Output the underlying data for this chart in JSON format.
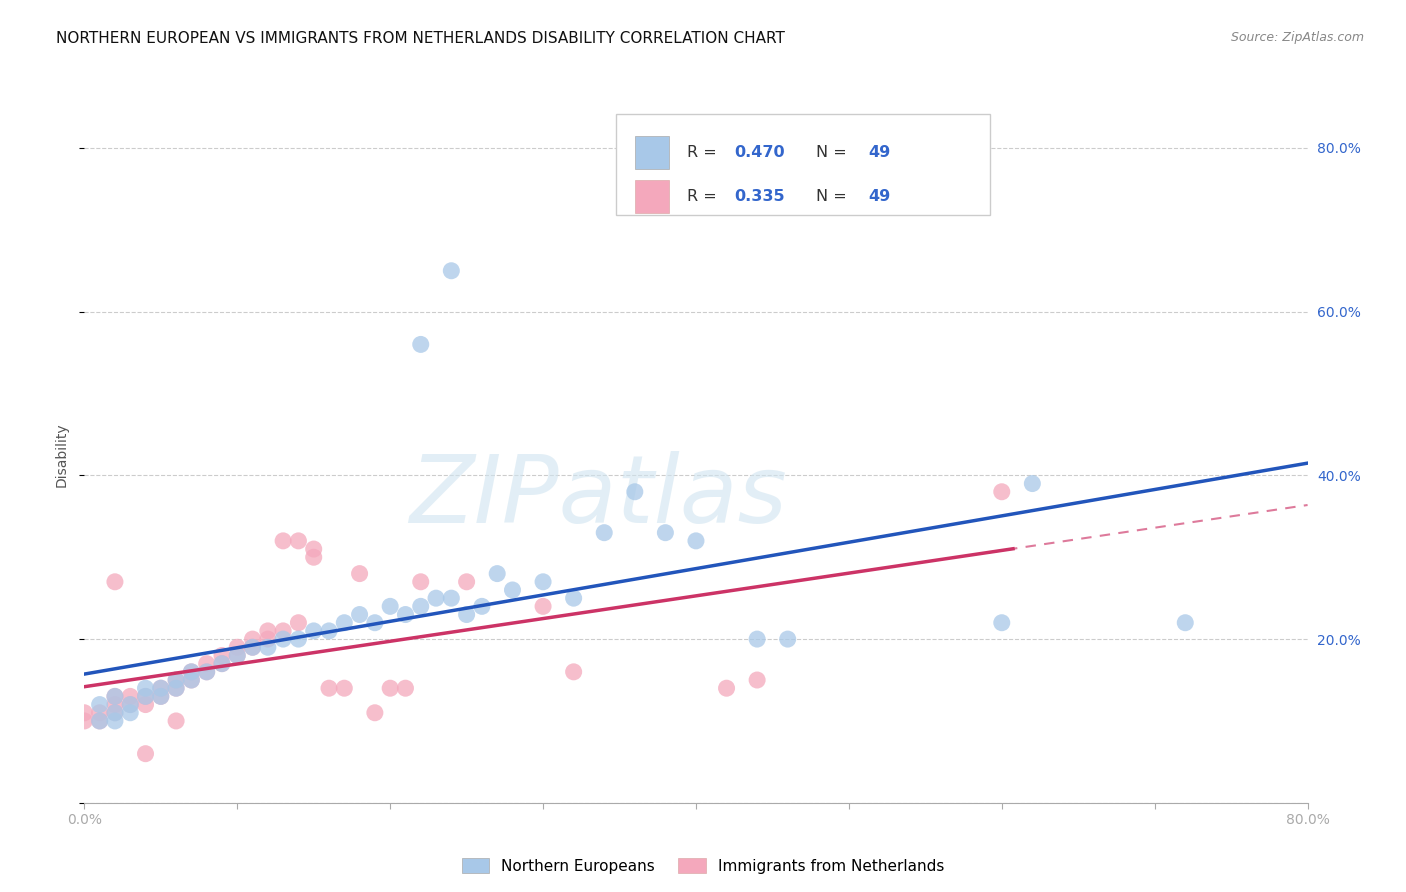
{
  "title": "NORTHERN EUROPEAN VS IMMIGRANTS FROM NETHERLANDS DISABILITY CORRELATION CHART",
  "source": "Source: ZipAtlas.com",
  "ylabel": "Disability",
  "x_min": 0.0,
  "x_max": 0.8,
  "y_min": 0.0,
  "y_max": 0.85,
  "blue_R": 0.47,
  "blue_N": 49,
  "pink_R": 0.335,
  "pink_N": 49,
  "blue_color": "#A8C8E8",
  "pink_color": "#F4A8BC",
  "blue_line_color": "#2255BB",
  "pink_line_color": "#CC3366",
  "watermark_text": "ZIPatlas",
  "legend_label_blue": "Northern Europeans",
  "legend_label_pink": "Immigrants from Netherlands",
  "blue_scatter_x": [
    0.01,
    0.01,
    0.02,
    0.02,
    0.02,
    0.03,
    0.03,
    0.04,
    0.04,
    0.05,
    0.05,
    0.06,
    0.06,
    0.07,
    0.07,
    0.08,
    0.09,
    0.1,
    0.11,
    0.12,
    0.13,
    0.14,
    0.15,
    0.16,
    0.17,
    0.18,
    0.19,
    0.2,
    0.21,
    0.22,
    0.23,
    0.24,
    0.25,
    0.26,
    0.27,
    0.28,
    0.3,
    0.32,
    0.34,
    0.36,
    0.38,
    0.4,
    0.44,
    0.46,
    0.6,
    0.62,
    0.72,
    0.22,
    0.24
  ],
  "blue_scatter_y": [
    0.1,
    0.12,
    0.1,
    0.11,
    0.13,
    0.11,
    0.12,
    0.13,
    0.14,
    0.13,
    0.14,
    0.14,
    0.15,
    0.15,
    0.16,
    0.16,
    0.17,
    0.18,
    0.19,
    0.19,
    0.2,
    0.2,
    0.21,
    0.21,
    0.22,
    0.23,
    0.22,
    0.24,
    0.23,
    0.24,
    0.25,
    0.25,
    0.23,
    0.24,
    0.28,
    0.26,
    0.27,
    0.25,
    0.33,
    0.38,
    0.33,
    0.32,
    0.2,
    0.2,
    0.22,
    0.39,
    0.22,
    0.56,
    0.65
  ],
  "pink_scatter_x": [
    0.0,
    0.0,
    0.01,
    0.01,
    0.02,
    0.02,
    0.02,
    0.03,
    0.03,
    0.04,
    0.04,
    0.05,
    0.05,
    0.06,
    0.06,
    0.06,
    0.07,
    0.07,
    0.08,
    0.08,
    0.09,
    0.09,
    0.1,
    0.1,
    0.11,
    0.11,
    0.12,
    0.12,
    0.13,
    0.13,
    0.14,
    0.14,
    0.15,
    0.15,
    0.16,
    0.17,
    0.18,
    0.19,
    0.2,
    0.21,
    0.22,
    0.25,
    0.3,
    0.32,
    0.42,
    0.44,
    0.6,
    0.02,
    0.04
  ],
  "pink_scatter_y": [
    0.1,
    0.11,
    0.1,
    0.11,
    0.11,
    0.12,
    0.13,
    0.12,
    0.13,
    0.12,
    0.13,
    0.13,
    0.14,
    0.14,
    0.15,
    0.1,
    0.15,
    0.16,
    0.16,
    0.17,
    0.17,
    0.18,
    0.18,
    0.19,
    0.19,
    0.2,
    0.2,
    0.21,
    0.21,
    0.32,
    0.22,
    0.32,
    0.3,
    0.31,
    0.14,
    0.14,
    0.28,
    0.11,
    0.14,
    0.14,
    0.27,
    0.27,
    0.24,
    0.16,
    0.14,
    0.15,
    0.38,
    0.27,
    0.06
  ]
}
